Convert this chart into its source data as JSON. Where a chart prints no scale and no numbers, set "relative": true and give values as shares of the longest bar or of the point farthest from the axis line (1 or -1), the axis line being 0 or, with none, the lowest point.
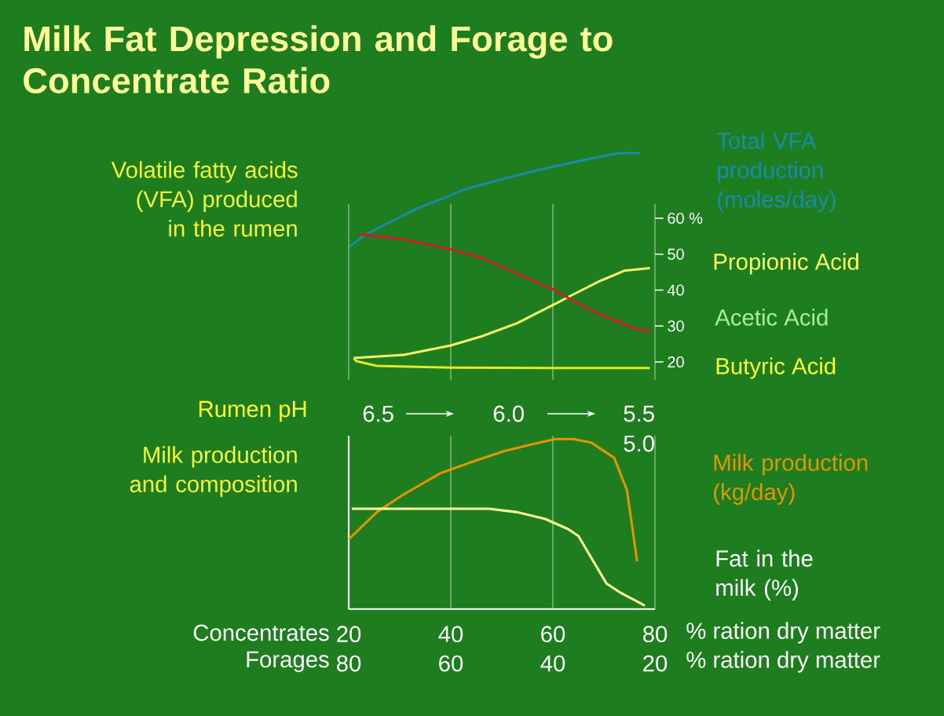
{
  "chart_data": [
    {
      "type": "line",
      "title": "Milk Fat Depression and Forage to Concentrate Ratio",
      "ylabel": "Volatile fatty acids (VFA) produced in the rumen",
      "relative": true,
      "xlim": [
        20,
        80
      ],
      "tick_labels": false,
      "series": [
        {
          "name": "Total VFA production (moles/day)",
          "color": "#1a8ca8",
          "x": [
            20,
            23,
            27,
            33,
            39.5,
            42.5,
            49,
            55,
            60.5,
            66.5,
            73,
            77
          ],
          "values": [
            0,
            0.125,
            0.236,
            0.403,
            0.542,
            0.611,
            0.708,
            0.792,
            0.861,
            0.931,
            1,
            1
          ]
        }
      ]
    },
    {
      "type": "line",
      "xlim": [
        20,
        80
      ],
      "xticks": [
        20,
        40,
        60,
        80
      ],
      "ylim": [
        15,
        64
      ],
      "yticks": [
        {
          "value": 60,
          "label": "60 %"
        },
        50,
        40,
        30,
        20
      ],
      "tick_labels": "y",
      "grid": "x",
      "series": [
        {
          "name": "Propionic Acid",
          "color": "#f5f56a",
          "x": [
            21,
            31,
            40,
            46,
            53,
            60.5,
            64,
            69,
            74,
            79
          ],
          "values": [
            21.1,
            22.0,
            24.6,
            27.1,
            30.8,
            36.2,
            38.8,
            42.4,
            45.4,
            46.1
          ]
        },
        {
          "name": "Acetic Acid",
          "color": "#c8202a",
          "x": [
            22,
            31,
            39.5,
            46,
            54,
            60.5,
            64,
            69,
            76,
            79
          ],
          "values": [
            55.6,
            54.1,
            51.5,
            49.0,
            43.9,
            39.9,
            37.0,
            33.3,
            29.3,
            28.6
          ]
        },
        {
          "name": "Butyric Acid",
          "color": "#e8e820",
          "x": [
            21,
            21.5,
            25.5,
            40,
            60.5,
            79
          ],
          "values": [
            21.1,
            20.2,
            18.9,
            18.4,
            18.3,
            18.3
          ]
        }
      ]
    },
    {
      "type": "line",
      "relative": true,
      "xlabel": "Concentrates",
      "x2label": "Forages",
      "ylabel": "Milk production and composition",
      "xlim": [
        20,
        80
      ],
      "xticks": [
        20,
        40,
        60,
        80
      ],
      "x2lim": [
        80,
        20
      ],
      "x2ticks": [
        80,
        60,
        40,
        20
      ],
      "tick_labels": "x",
      "grid": "x",
      "annotations": [
        "% ration dry matter",
        "% ration dry matter",
        "Rumen pH",
        "6.5",
        "6.0",
        "5.5",
        "5.0"
      ],
      "series": [
        {
          "name": "Milk production (kg/day)",
          "color": "#e39400",
          "x": [
            20,
            25.5,
            30.5,
            38,
            44.5,
            50.5,
            56,
            60.5,
            64,
            67.5,
            72,
            74.5,
            76.5
          ],
          "values": [
            0.41,
            0.57,
            0.67,
            0.8,
            0.87,
            0.93,
            0.97,
            1,
            1,
            0.98,
            0.89,
            0.7,
            0.28
          ]
        },
        {
          "name": "Fat in the milk (%)",
          "color": "#ffff99",
          "x": [
            20.6,
            36,
            47.5,
            53,
            58.5,
            63,
            65,
            70.5,
            73,
            78
          ],
          "values": [
            0.59,
            0.59,
            0.59,
            0.57,
            0.53,
            0.47,
            0.43,
            0.15,
            0.1,
            0.02
          ]
        }
      ]
    }
  ]
}
